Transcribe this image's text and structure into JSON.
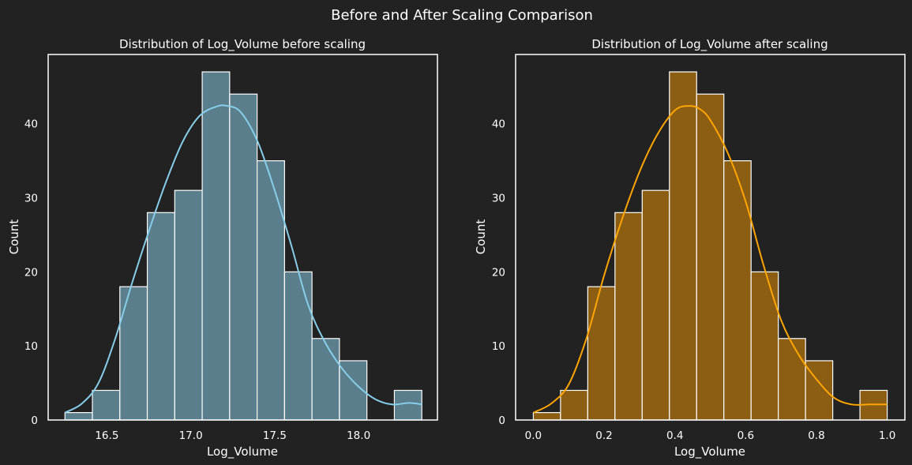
{
  "figure": {
    "title": "Before and After Scaling Comparison",
    "background": "#222222",
    "text_color": "#ffffff"
  },
  "chart_data": [
    {
      "type": "bar",
      "subtype": "histogram-with-kde",
      "title": "Distribution of Log_Volume before scaling",
      "xlabel": "Log_Volume",
      "ylabel": "Count",
      "xlim": [
        16.15,
        18.47
      ],
      "ylim": [
        0,
        49.35
      ],
      "xticks": [
        16.5,
        17.0,
        17.5,
        18.0
      ],
      "xtick_labels": [
        "16.5",
        "17.0",
        "17.5",
        "18.0"
      ],
      "yticks": [
        0,
        10,
        20,
        30,
        40
      ],
      "ytick_labels": [
        "0",
        "10",
        "20",
        "30",
        "40"
      ],
      "bin_start": 16.25,
      "bin_width": 0.1636,
      "counts": [
        1,
        4,
        18,
        28,
        31,
        47,
        44,
        35,
        20,
        11,
        8,
        0,
        4
      ],
      "kde": {
        "x": [
          16.25,
          16.35,
          16.45,
          16.55,
          16.65,
          16.75,
          16.85,
          16.95,
          17.05,
          17.15,
          17.22,
          17.3,
          17.4,
          17.5,
          17.6,
          17.7,
          17.8,
          17.9,
          18.0,
          18.1,
          18.2,
          18.3,
          18.38
        ],
        "y": [
          1.0,
          2.2,
          5.0,
          11.0,
          18.5,
          25.5,
          32.0,
          37.5,
          41.0,
          42.3,
          42.4,
          41.5,
          37.5,
          31.0,
          23.5,
          15.5,
          10.5,
          7.0,
          4.5,
          2.8,
          2.1,
          2.3,
          2.1
        ]
      },
      "bar_color": "#5a7e8c",
      "bar_edge_color": "#ffffff",
      "kde_color": "#87ceeb",
      "grid": false
    },
    {
      "type": "bar",
      "subtype": "histogram-with-kde",
      "title": "Distribution of Log_Volume after scaling",
      "xlabel": "Log_Volume",
      "ylabel": "Count",
      "xlim": [
        -0.05,
        1.05
      ],
      "ylim": [
        0,
        49.35
      ],
      "xticks": [
        0.0,
        0.2,
        0.4,
        0.6,
        0.8,
        1.0
      ],
      "xtick_labels": [
        "0.0",
        "0.2",
        "0.4",
        "0.6",
        "0.8",
        "1.0"
      ],
      "yticks": [
        0,
        10,
        20,
        30,
        40
      ],
      "ytick_labels": [
        "0",
        "10",
        "20",
        "30",
        "40"
      ],
      "bin_start": 0.0,
      "bin_width": 0.07692,
      "counts": [
        1,
        4,
        18,
        28,
        31,
        47,
        44,
        35,
        20,
        11,
        8,
        0,
        4
      ],
      "kde": {
        "x": [
          0.0,
          0.05,
          0.1,
          0.15,
          0.2,
          0.25,
          0.3,
          0.35,
          0.4,
          0.44,
          0.47,
          0.5,
          0.55,
          0.6,
          0.65,
          0.7,
          0.75,
          0.8,
          0.85,
          0.9,
          0.95,
          1.0
        ],
        "y": [
          1.0,
          2.2,
          4.8,
          11.0,
          19.5,
          27.0,
          33.5,
          38.5,
          41.8,
          42.4,
          42.0,
          40.5,
          36.0,
          29.5,
          21.0,
          13.5,
          8.8,
          5.5,
          3.0,
          2.1,
          2.1,
          2.1
        ]
      },
      "bar_color": "#8b5e13",
      "bar_edge_color": "#ffffff",
      "kde_color": "#ffa500",
      "grid": false
    }
  ]
}
